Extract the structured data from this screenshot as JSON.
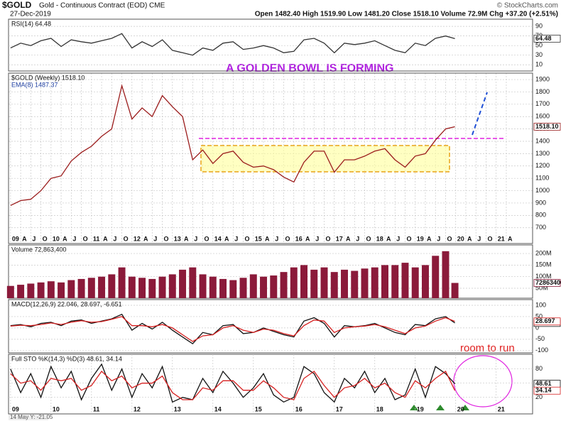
{
  "header": {
    "symbol": "$GOLD",
    "name": "Gold - Continuous Contract (EOD) CME",
    "date": "27-Dec-2019",
    "quote": "Open 1482.40 High 1519.90 Low 1481.20 Close 1518.10 Volume 72.9M Chg +37.20 (+2.51%)",
    "source": "© StockCharts.com"
  },
  "annotations": {
    "bowl": "A GOLDEN BOWL IS FORMING",
    "room": "room to run",
    "cursor": "14 May Y: -21.05"
  },
  "chart_data": [
    {
      "type": "line",
      "title": "RSI(14) 64.48",
      "xlim": [
        2008.95,
        2021.9
      ],
      "ylim": [
        -3,
        105
      ],
      "yticks": [
        90,
        70,
        50,
        30,
        10
      ],
      "x": [
        2009,
        2009.25,
        2009.5,
        2009.75,
        2010,
        2010.25,
        2010.5,
        2010.75,
        2011,
        2011.25,
        2011.5,
        2011.75,
        2012,
        2012.25,
        2012.5,
        2012.75,
        2013,
        2013.25,
        2013.5,
        2013.75,
        2014,
        2014.25,
        2014.5,
        2014.75,
        2015,
        2015.25,
        2015.5,
        2015.75,
        2016,
        2016.25,
        2016.5,
        2016.75,
        2017,
        2017.25,
        2017.5,
        2017.75,
        2018,
        2018.25,
        2018.5,
        2018.75,
        2019,
        2019.25,
        2019.5,
        2019.75,
        2019.98
      ],
      "series": [
        {
          "color": "#333333",
          "last_label": "64.48",
          "values": [
            45,
            55,
            50,
            60,
            65,
            48,
            62,
            58,
            55,
            60,
            65,
            75,
            45,
            58,
            48,
            62,
            40,
            35,
            30,
            45,
            40,
            55,
            58,
            42,
            45,
            50,
            45,
            35,
            38,
            62,
            65,
            55,
            35,
            55,
            52,
            55,
            60,
            50,
            40,
            35,
            55,
            50,
            65,
            70,
            64.48
          ]
        }
      ]
    },
    {
      "type": "line",
      "title": "$GOLD (Weekly) 1518.10",
      "subtitle": "EMA(8) 1487.37",
      "xlim": [
        2008.95,
        2021.9
      ],
      "ylim": [
        572,
        1952
      ],
      "yticks": [
        {
          "value": 700,
          "label": "700"
        },
        800,
        900,
        1000,
        1100,
        1200,
        1300,
        1400,
        1500,
        1600,
        1700,
        1800,
        1900
      ],
      "xticks": [
        {
          "value": 2009,
          "label": "09"
        },
        {
          "value": 2009.25,
          "label": "A"
        },
        {
          "value": 2009.5,
          "label": "J"
        },
        {
          "value": 2009.75,
          "label": "O"
        },
        {
          "value": 2010,
          "label": "10"
        },
        {
          "value": 2010.25,
          "label": "A"
        },
        {
          "value": 2010.5,
          "label": "J"
        },
        {
          "value": 2010.75,
          "label": "O"
        },
        {
          "value": 2011,
          "label": "11"
        },
        {
          "value": 2011.25,
          "label": "A"
        },
        {
          "value": 2011.5,
          "label": "J"
        },
        {
          "value": 2011.75,
          "label": "O"
        },
        {
          "value": 2012,
          "label": "12"
        },
        {
          "value": 2012.25,
          "label": "A"
        },
        {
          "value": 2012.5,
          "label": "J"
        },
        {
          "value": 2012.75,
          "label": "O"
        },
        {
          "value": 2013,
          "label": "13"
        },
        {
          "value": 2013.25,
          "label": "A"
        },
        {
          "value": 2013.5,
          "label": "J"
        },
        {
          "value": 2013.75,
          "label": "O"
        },
        {
          "value": 2014,
          "label": "14"
        },
        {
          "value": 2014.25,
          "label": "A"
        },
        {
          "value": 2014.5,
          "label": "J"
        },
        {
          "value": 2014.75,
          "label": "O"
        },
        {
          "value": 2015,
          "label": "15"
        },
        {
          "value": 2015.25,
          "label": "A"
        },
        {
          "value": 2015.5,
          "label": "J"
        },
        {
          "value": 2015.75,
          "label": "O"
        },
        {
          "value": 2016,
          "label": "16"
        },
        {
          "value": 2016.25,
          "label": "A"
        },
        {
          "value": 2016.5,
          "label": "J"
        },
        {
          "value": 2016.75,
          "label": "O"
        },
        {
          "value": 2017,
          "label": "17"
        },
        {
          "value": 2017.25,
          "label": "A"
        },
        {
          "value": 2017.5,
          "label": "J"
        },
        {
          "value": 2017.75,
          "label": "O"
        },
        {
          "value": 2018,
          "label": "18"
        },
        {
          "value": 2018.25,
          "label": "A"
        },
        {
          "value": 2018.5,
          "label": "J"
        },
        {
          "value": 2018.75,
          "label": "O"
        },
        {
          "value": 2019,
          "label": "19"
        },
        {
          "value": 2019.25,
          "label": "A"
        },
        {
          "value": 2019.5,
          "label": "J"
        },
        {
          "value": 2019.75,
          "label": "O"
        },
        {
          "value": 2020,
          "label": "20"
        },
        {
          "value": 2020.25,
          "label": "A"
        },
        {
          "value": 2020.5,
          "label": "J"
        },
        {
          "value": 2020.75,
          "label": "O"
        },
        {
          "value": 2021,
          "label": "21"
        },
        {
          "value": 2021.25,
          "label": "A"
        }
      ],
      "x": [
        2009,
        2009.25,
        2009.5,
        2009.75,
        2010,
        2010.25,
        2010.5,
        2010.75,
        2011,
        2011.25,
        2011.5,
        2011.75,
        2012,
        2012.25,
        2012.5,
        2012.75,
        2013,
        2013.25,
        2013.5,
        2013.75,
        2014,
        2014.25,
        2014.5,
        2014.75,
        2015,
        2015.25,
        2015.5,
        2015.75,
        2016,
        2016.25,
        2016.5,
        2016.75,
        2017,
        2017.25,
        2017.5,
        2017.75,
        2018,
        2018.25,
        2018.5,
        2018.75,
        2019,
        2019.25,
        2019.5,
        2019.75,
        2019.98
      ],
      "series": [
        {
          "color": "#9b1c1c",
          "last_label": "1518.10",
          "values": [
            880,
            920,
            930,
            1000,
            1100,
            1120,
            1240,
            1310,
            1360,
            1440,
            1500,
            1850,
            1580,
            1670,
            1600,
            1770,
            1680,
            1600,
            1250,
            1330,
            1220,
            1300,
            1320,
            1230,
            1190,
            1200,
            1170,
            1110,
            1070,
            1230,
            1320,
            1320,
            1150,
            1250,
            1250,
            1280,
            1320,
            1340,
            1250,
            1190,
            1280,
            1300,
            1410,
            1500,
            1518.1
          ]
        }
      ]
    },
    {
      "type": "bar",
      "title": "Volume 72,863,400",
      "xlim": [
        2008.95,
        2021.9
      ],
      "ylim": [
        7000000,
        237000000
      ],
      "yticks": [
        {
          "value": 200000000,
          "label": "200M"
        },
        {
          "value": 150000000,
          "label": "150M"
        },
        {
          "value": 100000000,
          "label": "100M"
        },
        {
          "value": 50000000,
          "label": "50M"
        }
      ],
      "x": [
        2009,
        2009.25,
        2009.5,
        2009.75,
        2010,
        2010.25,
        2010.5,
        2010.75,
        2011,
        2011.25,
        2011.5,
        2011.75,
        2012,
        2012.25,
        2012.5,
        2012.75,
        2013,
        2013.25,
        2013.5,
        2013.75,
        2014,
        2014.25,
        2014.5,
        2014.75,
        2015,
        2015.25,
        2015.5,
        2015.75,
        2016,
        2016.25,
        2016.5,
        2016.75,
        2017,
        2017.25,
        2017.5,
        2017.75,
        2018,
        2018.25,
        2018.5,
        2018.75,
        2019,
        2019.25,
        2019.5,
        2019.75,
        2019.98
      ],
      "series": [
        {
          "color": "#8b1a3a",
          "last_label": "72863400",
          "values": [
            60000000,
            65000000,
            70000000,
            75000000,
            80000000,
            75000000,
            85000000,
            90000000,
            95000000,
            100000000,
            110000000,
            140000000,
            100000000,
            95000000,
            90000000,
            100000000,
            110000000,
            130000000,
            140000000,
            110000000,
            100000000,
            90000000,
            85000000,
            95000000,
            110000000,
            100000000,
            105000000,
            120000000,
            140000000,
            150000000,
            130000000,
            140000000,
            120000000,
            130000000,
            125000000,
            135000000,
            140000000,
            150000000,
            150000000,
            160000000,
            140000000,
            150000000,
            190000000,
            210000000,
            72863400
          ]
        }
      ]
    },
    {
      "type": "line",
      "title": "MACD(12,26,9) 22.046, 28.697, -6.651",
      "xlim": [
        2008.95,
        2021.9
      ],
      "ylim": [
        -110,
        125
      ],
      "yticks": [
        100,
        50,
        0,
        -50,
        -100
      ],
      "x": [
        2009,
        2009.25,
        2009.5,
        2009.75,
        2010,
        2010.25,
        2010.5,
        2010.75,
        2011,
        2011.25,
        2011.5,
        2011.75,
        2012,
        2012.25,
        2012.5,
        2012.75,
        2013,
        2013.25,
        2013.5,
        2013.75,
        2014,
        2014.25,
        2014.5,
        2014.75,
        2015,
        2015.25,
        2015.5,
        2015.75,
        2016,
        2016.25,
        2016.5,
        2016.75,
        2017,
        2017.25,
        2017.5,
        2017.75,
        2018,
        2018.25,
        2018.5,
        2018.75,
        2019,
        2019.25,
        2019.5,
        2019.75,
        2019.98
      ],
      "series": [
        {
          "color": "#111111",
          "last_label": "22.046",
          "values": [
            10,
            15,
            5,
            20,
            25,
            10,
            30,
            35,
            20,
            30,
            40,
            60,
            -10,
            20,
            -5,
            25,
            -10,
            -40,
            -70,
            -20,
            -30,
            10,
            15,
            -25,
            -20,
            0,
            -15,
            -30,
            -40,
            30,
            45,
            20,
            -40,
            10,
            5,
            10,
            20,
            0,
            -20,
            -30,
            15,
            10,
            40,
            50,
            22.046
          ]
        },
        {
          "color": "#d62020",
          "last_label": "28.697",
          "values": [
            8,
            12,
            10,
            15,
            22,
            15,
            25,
            32,
            25,
            28,
            38,
            50,
            10,
            10,
            5,
            15,
            0,
            -30,
            -60,
            -35,
            -30,
            0,
            10,
            -10,
            -20,
            -5,
            -10,
            -25,
            -35,
            10,
            35,
            30,
            -20,
            0,
            5,
            8,
            15,
            5,
            -10,
            -25,
            0,
            8,
            30,
            45,
            28.697
          ]
        }
      ]
    },
    {
      "type": "line",
      "title": "Full STO %K(14,3) %D(3) 48.61, 34.14",
      "xlim": [
        2008.95,
        2021.9
      ],
      "ylim": [
        -15,
        111
      ],
      "yticks": [
        80,
        50,
        20
      ],
      "xticks": [
        {
          "value": 2009,
          "label": "09"
        },
        {
          "value": 2010,
          "label": "10"
        },
        {
          "value": 2011,
          "label": "11"
        },
        {
          "value": 2012,
          "label": "12"
        },
        {
          "value": 2013,
          "label": "13"
        },
        {
          "value": 2014,
          "label": "14"
        },
        {
          "value": 2015,
          "label": "15"
        },
        {
          "value": 2016,
          "label": "16"
        },
        {
          "value": 2017,
          "label": "17"
        },
        {
          "value": 2018,
          "label": "18"
        },
        {
          "value": 2019,
          "label": "19"
        },
        {
          "value": 2020,
          "label": "20"
        },
        {
          "value": 2021,
          "label": "21"
        }
      ],
      "x": [
        2009,
        2009.25,
        2009.5,
        2009.75,
        2010,
        2010.25,
        2010.5,
        2010.75,
        2011,
        2011.25,
        2011.5,
        2011.75,
        2012,
        2012.25,
        2012.5,
        2012.75,
        2013,
        2013.25,
        2013.5,
        2013.75,
        2014,
        2014.25,
        2014.5,
        2014.75,
        2015,
        2015.25,
        2015.5,
        2015.75,
        2016,
        2016.25,
        2016.5,
        2016.75,
        2017,
        2017.25,
        2017.5,
        2017.75,
        2018,
        2018.25,
        2018.5,
        2018.75,
        2019,
        2019.25,
        2019.5,
        2019.75,
        2019.98
      ],
      "series": [
        {
          "color": "#111111",
          "last_label": "48.61",
          "values": [
            80,
            30,
            70,
            20,
            85,
            40,
            75,
            15,
            60,
            90,
            35,
            80,
            20,
            70,
            40,
            85,
            10,
            20,
            15,
            60,
            30,
            75,
            50,
            20,
            40,
            70,
            25,
            10,
            20,
            85,
            70,
            30,
            10,
            60,
            40,
            75,
            30,
            60,
            15,
            25,
            80,
            20,
            85,
            70,
            48.61
          ]
        },
        {
          "color": "#d62020",
          "last_label": "34.14",
          "values": [
            70,
            50,
            55,
            35,
            60,
            55,
            60,
            35,
            45,
            75,
            55,
            65,
            40,
            50,
            50,
            65,
            30,
            15,
            15,
            40,
            35,
            55,
            55,
            35,
            35,
            55,
            40,
            20,
            15,
            60,
            75,
            45,
            20,
            40,
            45,
            60,
            40,
            50,
            30,
            20,
            55,
            40,
            60,
            75,
            34.14
          ]
        }
      ]
    }
  ]
}
